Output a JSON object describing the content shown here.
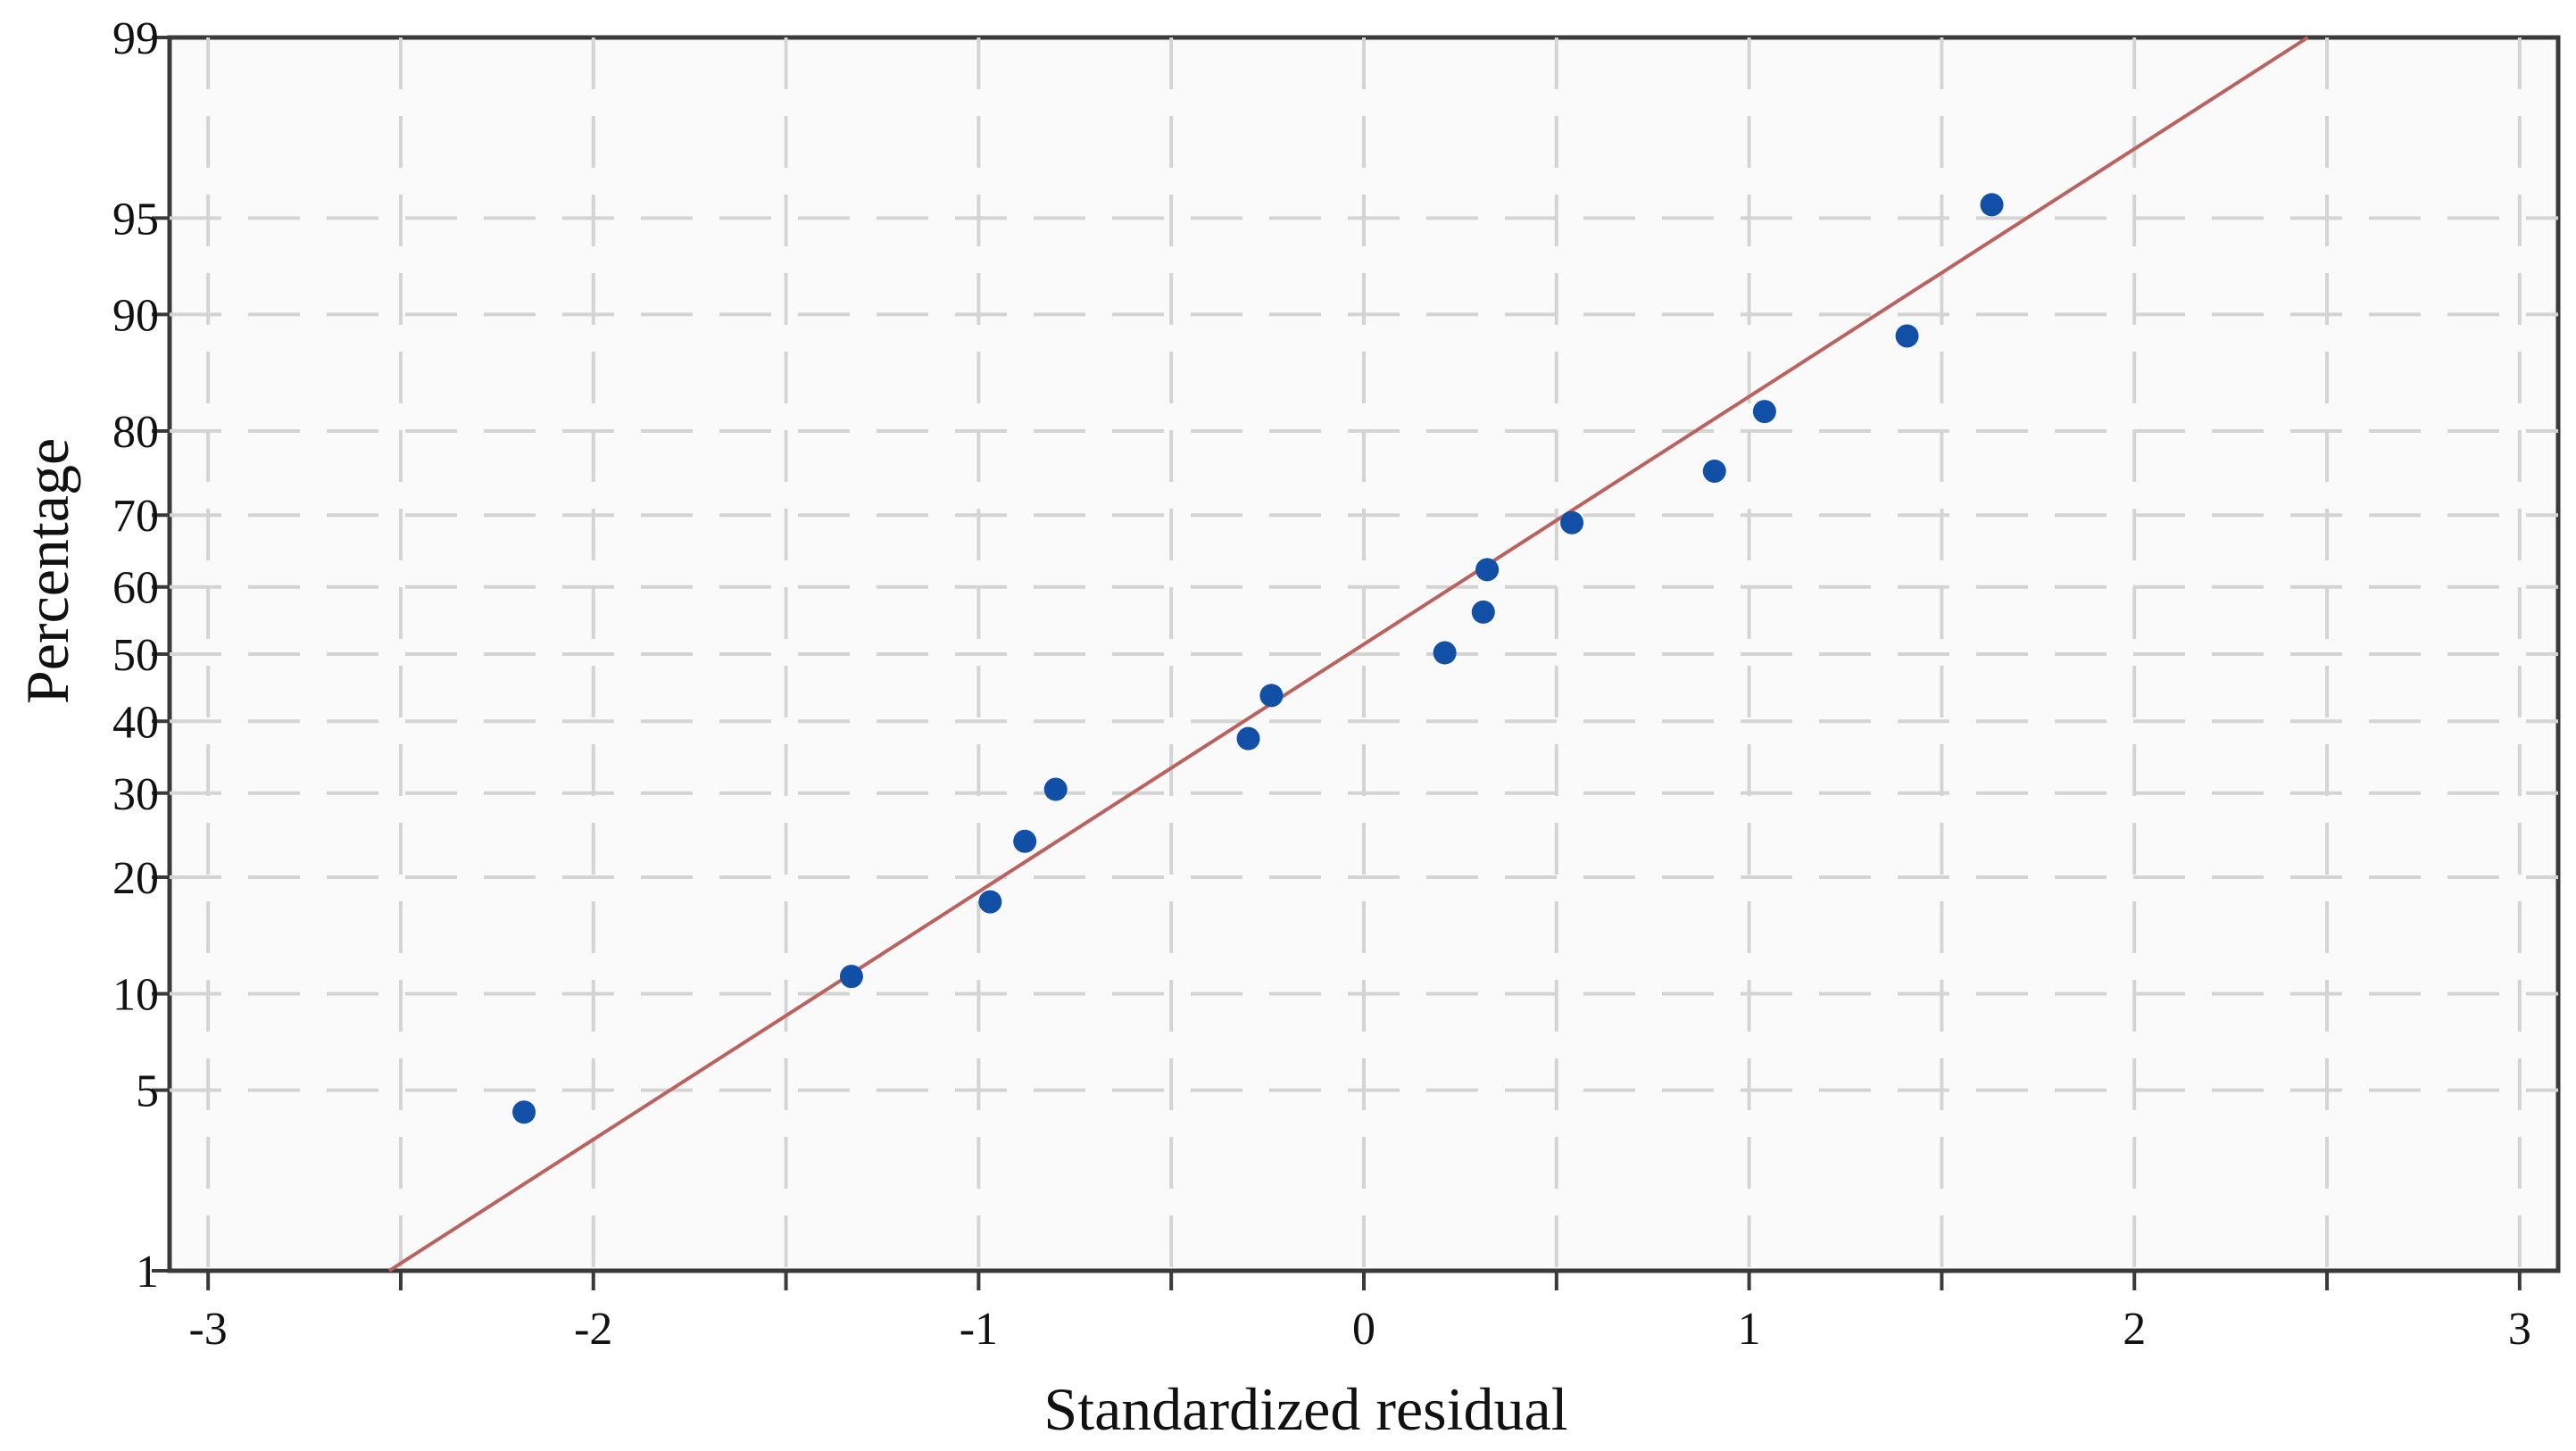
{
  "chart_data": {
    "type": "scatter",
    "title": "",
    "xlabel": "Standardized residual",
    "ylabel": "Percentage",
    "xlim": [
      -3.1,
      3.1
    ],
    "ylim": [
      1,
      99
    ],
    "yscale": "normal-probability",
    "grid": true,
    "legend": "none",
    "x_ticks": [
      {
        "value": -3,
        "label": "-3"
      },
      {
        "value": -2,
        "label": "-2"
      },
      {
        "value": -1,
        "label": "-1"
      },
      {
        "value": 0,
        "label": "0"
      },
      {
        "value": 1,
        "label": "1"
      },
      {
        "value": 2,
        "label": "2"
      },
      {
        "value": 3,
        "label": "3"
      }
    ],
    "y_ticks": [
      {
        "value": 1,
        "label": "1"
      },
      {
        "value": 5,
        "label": "5"
      },
      {
        "value": 10,
        "label": "10"
      },
      {
        "value": 20,
        "label": "20"
      },
      {
        "value": 30,
        "label": "30"
      },
      {
        "value": 40,
        "label": "40"
      },
      {
        "value": 50,
        "label": "50"
      },
      {
        "value": 60,
        "label": "60"
      },
      {
        "value": 70,
        "label": "70"
      },
      {
        "value": 80,
        "label": "80"
      },
      {
        "value": 90,
        "label": "90"
      },
      {
        "value": 95,
        "label": "95"
      },
      {
        "value": 99,
        "label": "99"
      }
    ],
    "series": [
      {
        "values": [
          {
            "x": -2.18,
            "y": 4.2
          },
          {
            "x": -1.33,
            "y": 11.2
          },
          {
            "x": -0.97,
            "y": 17.5
          },
          {
            "x": -0.88,
            "y": 24.0
          },
          {
            "x": -0.8,
            "y": 30.5
          },
          {
            "x": -0.3,
            "y": 37.5
          },
          {
            "x": -0.24,
            "y": 43.8
          },
          {
            "x": 0.21,
            "y": 50.2
          },
          {
            "x": 0.31,
            "y": 56.3
          },
          {
            "x": 0.32,
            "y": 62.5
          },
          {
            "x": 0.54,
            "y": 69.0
          },
          {
            "x": 0.91,
            "y": 75.5
          },
          {
            "x": 1.04,
            "y": 82.0
          },
          {
            "x": 1.41,
            "y": 88.5
          },
          {
            "x": 1.63,
            "y": 95.5
          }
        ]
      }
    ],
    "fit_line": {
      "start": {
        "x": -2.53,
        "y": 1
      },
      "end": {
        "x": 2.45,
        "y": 99
      }
    },
    "colors": {
      "points": "#1250a8",
      "fit_line": "#b9625f",
      "grid": "#d4d4d4",
      "frame": "#3a3a3a"
    }
  }
}
